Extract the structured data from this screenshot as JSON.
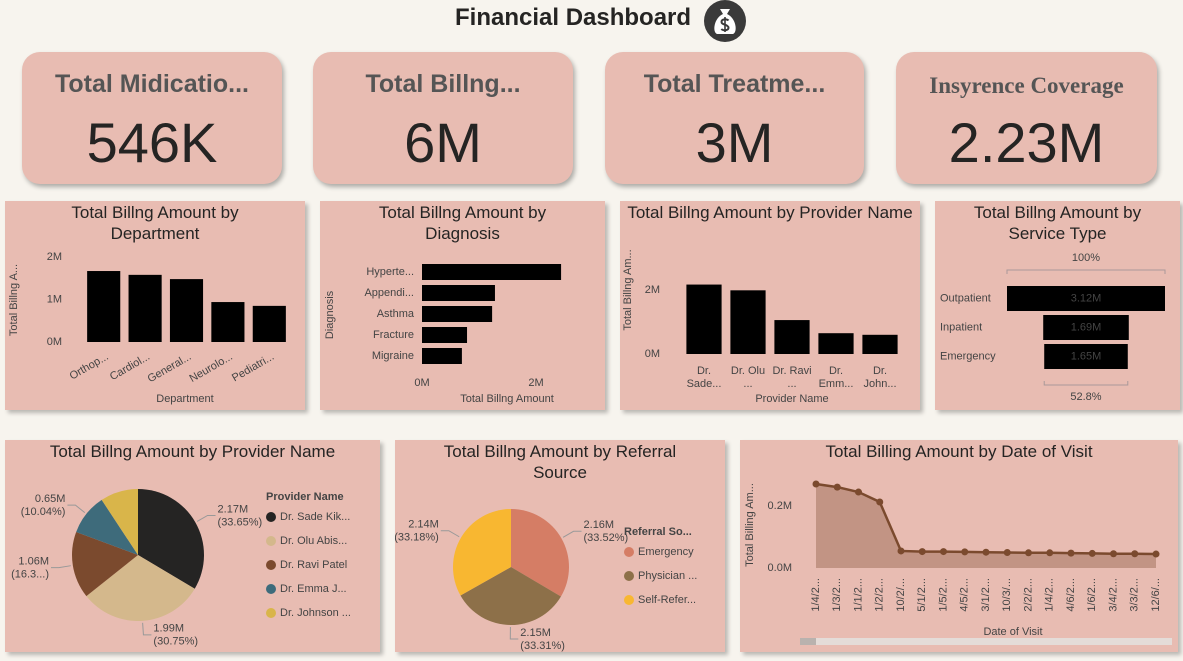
{
  "title": "Financial Dashboard",
  "kpis": [
    {
      "label": "Total Midicatio...",
      "value": "546K"
    },
    {
      "label": "Total Billng...",
      "value": "6M"
    },
    {
      "label": "Total Treatme...",
      "value": "3M"
    },
    {
      "label": "Insyrence Coverage",
      "value": "2.23M"
    }
  ],
  "chart_data": [
    {
      "type": "bar",
      "title": "Total Billng Amount by Department",
      "x_label": "Department",
      "y_label": "Total Billng A...",
      "categories": [
        "Orthop...",
        "Cardiol...",
        "General...",
        "Neurolo...",
        "Pediatri..."
      ],
      "values": [
        1670000,
        1580000,
        1480000,
        940000,
        850000
      ],
      "color": "#000000",
      "ylim": [
        0,
        2000000
      ],
      "yticks": [
        {
          "value": 0,
          "label": "0M"
        },
        {
          "value": 1000000,
          "label": "1M"
        },
        {
          "value": 2000000,
          "label": "2M"
        }
      ]
    },
    {
      "type": "bar",
      "orientation": "horizontal",
      "title": "Total Billng Amount by Diagnosis",
      "x_label": "Total Billng Amount",
      "y_label": "Diagnosis",
      "categories": [
        "Hyperte...",
        "Appendi...",
        "Asthma",
        "Fracture",
        "Migraine"
      ],
      "values": [
        2440000,
        1280000,
        1230000,
        790000,
        700000
      ],
      "color": "#000000",
      "xlim": [
        0,
        2500000
      ],
      "xticks": [
        {
          "value": 0,
          "label": "0M"
        },
        {
          "value": 2000000,
          "label": "2M"
        }
      ]
    },
    {
      "type": "bar",
      "title": "Total Billng Amount by Provider Name",
      "x_label": "Provider Name",
      "y_label": "Total Billng Am...",
      "categories": [
        "Dr. Sade...",
        "Dr. Olu ...",
        "Dr. Ravi ...",
        "Dr. Emm...",
        "Dr. John..."
      ],
      "values": [
        2170000,
        1990000,
        1060000,
        650000,
        600000
      ],
      "color": "#000000",
      "ylim": [
        0,
        2400000
      ],
      "yticks": [
        {
          "value": 0,
          "label": "0M"
        },
        {
          "value": 2000000,
          "label": "2M"
        }
      ]
    },
    {
      "type": "funnel",
      "title": "Total Billng Amount by Service Type",
      "categories": [
        "Outpatient",
        "Inpatient",
        "Emergency"
      ],
      "values": [
        3120000,
        1690000,
        1650000
      ],
      "value_labels": [
        "3.12M",
        "1.69M",
        "1.65M"
      ],
      "color": "#000000",
      "top_label": "100%",
      "bottom_label": "52.8%"
    },
    {
      "type": "pie",
      "title": "Total Billng Amount by Provider Name",
      "legend_title": "Provider Name",
      "categories": [
        "Dr. Sade Kik...",
        "Dr. Olu Abis...",
        "Dr. Ravi Patel",
        "Dr. Emma J...",
        "Dr. Johnson ..."
      ],
      "values": [
        2170000,
        1990000,
        1060000,
        650000,
        600000
      ],
      "value_labels": [
        "2.17M",
        "1.99M",
        "1.06M",
        "0.65M",
        null
      ],
      "percent_labels": [
        "(33.65%)",
        "(30.75%)",
        "(16.3...)",
        "(10.04%)",
        null
      ],
      "colors": [
        "#252423",
        "#d4b88c",
        "#7b4a2e",
        "#3e6b7b",
        "#d9b54a"
      ]
    },
    {
      "type": "pie",
      "title": "Total Billng Amount by Referral Source",
      "legend_title": "Referral So...",
      "categories": [
        "Emergency",
        "Physician ...",
        "Self-Refer..."
      ],
      "values": [
        2160000,
        2150000,
        2140000
      ],
      "value_labels": [
        "2.16M",
        "2.15M",
        "2.14M"
      ],
      "percent_labels": [
        "(33.52%)",
        "(33.31%)",
        "(33.18%)"
      ],
      "colors": [
        "#d57d65",
        "#8d7049",
        "#f8b731"
      ]
    },
    {
      "type": "area",
      "title": "Total Billing Amount by Date of Visit",
      "x_label": "Date of Visit",
      "y_label": "Total Billing Am...",
      "categories": [
        "1/4/2...",
        "1/3/2...",
        "1/1/2...",
        "1/2/2...",
        "10/2/...",
        "5/1/2...",
        "1/5/2...",
        "4/5/2...",
        "3/1/2...",
        "10/3/...",
        "2/2/2...",
        "1/4/2...",
        "4/6/2...",
        "1/6/2...",
        "3/4/2...",
        "3/3/2...",
        "12/6/..."
      ],
      "values": [
        271000,
        261000,
        245000,
        213000,
        55000,
        53000,
        53000,
        52000,
        51000,
        50000,
        49000,
        49000,
        48000,
        47000,
        46000,
        46000,
        45000
      ],
      "color": "#7b4a2e",
      "ylim": [
        0,
        300000
      ],
      "yticks": [
        {
          "value": 0,
          "label": "0.0M"
        },
        {
          "value": 200000,
          "label": "0.2M"
        }
      ]
    }
  ]
}
